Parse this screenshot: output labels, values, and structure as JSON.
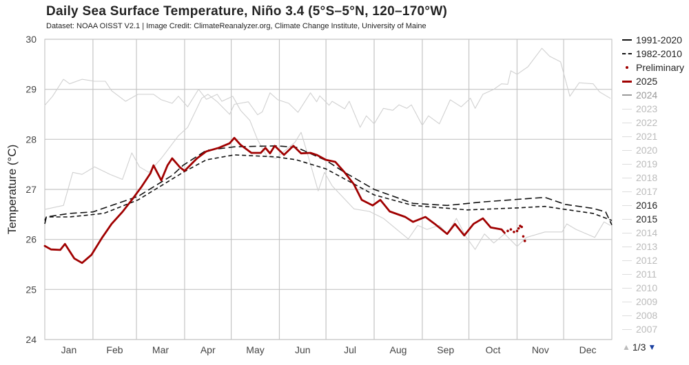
{
  "title": "Daily Sea Surface Temperature, Niño 3.4 (5°S–5°N, 120–170°W)",
  "subtitle": "Dataset: NOAA OISST V2.1 | Image Credit: ClimateReanalyzer.org, Climate Change Institute, University of Maine",
  "legend": [
    {
      "label": "1991-2020",
      "style": "solid",
      "color": "#111111",
      "text_color": "#222222"
    },
    {
      "label": "1982-2010",
      "style": "dash-dot",
      "color": "#111111",
      "text_color": "#222222"
    },
    {
      "label": "Preliminary",
      "style": "dot",
      "color": "#a00000",
      "text_color": "#222222"
    },
    {
      "label": "2025",
      "style": "solid-thick",
      "color": "#a00000",
      "text_color": "#222222"
    },
    {
      "label": "2024",
      "style": "solid",
      "color": "#999999",
      "text_color": "#999999"
    },
    {
      "label": "2023",
      "style": "solid",
      "color": "#dddddd",
      "text_color": "#bbbbbb"
    },
    {
      "label": "2022",
      "style": "solid",
      "color": "#dddddd",
      "text_color": "#bbbbbb"
    },
    {
      "label": "2021",
      "style": "solid",
      "color": "#dddddd",
      "text_color": "#bbbbbb"
    },
    {
      "label": "2020",
      "style": "solid",
      "color": "#dddddd",
      "text_color": "#bbbbbb"
    },
    {
      "label": "2019",
      "style": "solid",
      "color": "#dddddd",
      "text_color": "#bbbbbb"
    },
    {
      "label": "2018",
      "style": "solid",
      "color": "#dddddd",
      "text_color": "#bbbbbb"
    },
    {
      "label": "2017",
      "style": "solid",
      "color": "#dddddd",
      "text_color": "#bbbbbb"
    },
    {
      "label": "2016",
      "style": "solid",
      "color": "#dddddd",
      "text_color": "#222222"
    },
    {
      "label": "2015",
      "style": "solid",
      "color": "#dddddd",
      "text_color": "#222222"
    },
    {
      "label": "2014",
      "style": "solid",
      "color": "#dddddd",
      "text_color": "#bbbbbb"
    },
    {
      "label": "2013",
      "style": "solid",
      "color": "#dddddd",
      "text_color": "#bbbbbb"
    },
    {
      "label": "2012",
      "style": "solid",
      "color": "#dddddd",
      "text_color": "#bbbbbb"
    },
    {
      "label": "2011",
      "style": "solid",
      "color": "#dddddd",
      "text_color": "#bbbbbb"
    },
    {
      "label": "2010",
      "style": "solid",
      "color": "#dddddd",
      "text_color": "#bbbbbb"
    },
    {
      "label": "2009",
      "style": "solid",
      "color": "#dddddd",
      "text_color": "#bbbbbb"
    },
    {
      "label": "2008",
      "style": "solid",
      "color": "#dddddd",
      "text_color": "#bbbbbb"
    },
    {
      "label": "2007",
      "style": "solid",
      "color": "#dddddd",
      "text_color": "#bbbbbb"
    }
  ],
  "pager": {
    "label": "1/3",
    "up_icon": "triangle-up",
    "down_icon": "triangle-down"
  },
  "chart_data": {
    "type": "line",
    "title": "Daily Sea Surface Temperature, Niño 3.4 (5°S–5°N, 120–170°W)",
    "ylabel": "Temperature (°C)",
    "xlabel": "",
    "x_unit": "day of year",
    "xlim": [
      0,
      365
    ],
    "ylim": [
      24,
      30
    ],
    "yticks": [
      "24",
      "25",
      "26",
      "27",
      "28",
      "29",
      "30"
    ],
    "xticks": [
      "Jan",
      "Feb",
      "Mar",
      "Apr",
      "May",
      "Jun",
      "Jul",
      "Aug",
      "Sep",
      "Oct",
      "Nov",
      "Dec"
    ],
    "grid": true,
    "legend_position": "right",
    "series": [
      {
        "name": "2016",
        "color": "#d0d0d0",
        "style": "thin",
        "points": [
          [
            0,
            28.68
          ],
          [
            5,
            28.86
          ],
          [
            12,
            29.2
          ],
          [
            16,
            29.11
          ],
          [
            24,
            29.2
          ],
          [
            32,
            29.16
          ],
          [
            39,
            29.16
          ],
          [
            43,
            28.97
          ],
          [
            52,
            28.76
          ],
          [
            60,
            28.9
          ],
          [
            70,
            28.9
          ],
          [
            75,
            28.79
          ],
          [
            82,
            28.72
          ],
          [
            86,
            28.86
          ],
          [
            92,
            28.65
          ],
          [
            99,
            29.0
          ],
          [
            104,
            28.8
          ],
          [
            111,
            28.9
          ],
          [
            114,
            28.76
          ],
          [
            121,
            28.86
          ],
          [
            126,
            28.58
          ],
          [
            132,
            28.38
          ],
          [
            137,
            27.99
          ],
          [
            143,
            27.66
          ],
          [
            149,
            27.62
          ],
          [
            154,
            27.76
          ],
          [
            161,
            27.94
          ],
          [
            165,
            28.14
          ],
          [
            169,
            27.72
          ],
          [
            176,
            26.97
          ],
          [
            180,
            27.34
          ],
          [
            185,
            27.07
          ],
          [
            192,
            26.84
          ],
          [
            199,
            26.61
          ],
          [
            209,
            26.56
          ],
          [
            218,
            26.42
          ],
          [
            225,
            26.24
          ],
          [
            234,
            26.01
          ],
          [
            240,
            26.28
          ],
          [
            246,
            26.2
          ],
          [
            254,
            26.28
          ],
          [
            259,
            26.11
          ],
          [
            265,
            26.42
          ],
          [
            271,
            26.06
          ],
          [
            277,
            25.8
          ],
          [
            283,
            26.11
          ],
          [
            289,
            25.93
          ],
          [
            296,
            26.11
          ],
          [
            304,
            25.86
          ],
          [
            310,
            26.04
          ],
          [
            322,
            26.15
          ],
          [
            333,
            26.15
          ],
          [
            336,
            26.31
          ],
          [
            342,
            26.2
          ],
          [
            354,
            26.04
          ],
          [
            360,
            26.35
          ],
          [
            364,
            26.28
          ]
        ]
      },
      {
        "name": "2015",
        "color": "#d0d0d0",
        "style": "thin",
        "points": [
          [
            0,
            26.6
          ],
          [
            12,
            26.68
          ],
          [
            18,
            27.34
          ],
          [
            24,
            27.3
          ],
          [
            32,
            27.45
          ],
          [
            42,
            27.3
          ],
          [
            50,
            27.2
          ],
          [
            56,
            27.73
          ],
          [
            61,
            27.45
          ],
          [
            67,
            27.34
          ],
          [
            75,
            27.62
          ],
          [
            86,
            28.07
          ],
          [
            92,
            28.24
          ],
          [
            101,
            28.82
          ],
          [
            105,
            28.9
          ],
          [
            111,
            28.75
          ],
          [
            119,
            28.5
          ],
          [
            122,
            28.7
          ],
          [
            131,
            28.75
          ],
          [
            137,
            28.49
          ],
          [
            140,
            28.55
          ],
          [
            145,
            28.93
          ],
          [
            150,
            28.79
          ],
          [
            157,
            28.72
          ],
          [
            163,
            28.54
          ],
          [
            171,
            28.93
          ],
          [
            175,
            28.75
          ],
          [
            177,
            28.87
          ],
          [
            183,
            28.68
          ],
          [
            185,
            28.76
          ],
          [
            193,
            28.61
          ],
          [
            196,
            28.76
          ],
          [
            203,
            28.24
          ],
          [
            207,
            28.47
          ],
          [
            212,
            28.31
          ],
          [
            218,
            28.62
          ],
          [
            224,
            28.58
          ],
          [
            228,
            28.69
          ],
          [
            233,
            28.62
          ],
          [
            236,
            28.69
          ],
          [
            243,
            28.28
          ],
          [
            247,
            28.47
          ],
          [
            254,
            28.31
          ],
          [
            261,
            28.79
          ],
          [
            268,
            28.65
          ],
          [
            274,
            28.82
          ],
          [
            277,
            28.62
          ],
          [
            282,
            28.9
          ],
          [
            289,
            29.0
          ],
          [
            294,
            29.11
          ],
          [
            298,
            29.1
          ],
          [
            300,
            29.37
          ],
          [
            304,
            29.3
          ],
          [
            311,
            29.45
          ],
          [
            320,
            29.82
          ],
          [
            325,
            29.66
          ],
          [
            332,
            29.55
          ],
          [
            338,
            28.86
          ],
          [
            344,
            29.13
          ],
          [
            353,
            29.11
          ],
          [
            357,
            28.95
          ],
          [
            364,
            28.82
          ]
        ]
      },
      {
        "name": "1982-2010",
        "color": "#111111",
        "style": "short-dash",
        "points": [
          [
            0,
            26.38
          ],
          [
            1,
            26.45
          ],
          [
            16,
            26.45
          ],
          [
            38,
            26.52
          ],
          [
            60,
            26.79
          ],
          [
            89,
            27.34
          ],
          [
            104,
            27.59
          ],
          [
            122,
            27.69
          ],
          [
            149,
            27.65
          ],
          [
            162,
            27.59
          ],
          [
            181,
            27.41
          ],
          [
            212,
            26.89
          ],
          [
            237,
            26.68
          ],
          [
            272,
            26.59
          ],
          [
            304,
            26.63
          ],
          [
            322,
            26.66
          ],
          [
            335,
            26.6
          ],
          [
            353,
            26.52
          ],
          [
            365,
            26.38
          ]
        ]
      },
      {
        "name": "1991-2020",
        "color": "#111111",
        "style": "long-dash",
        "points": [
          [
            0,
            26.31
          ],
          [
            1,
            26.45
          ],
          [
            16,
            26.52
          ],
          [
            31,
            26.55
          ],
          [
            60,
            26.86
          ],
          [
            82,
            27.28
          ],
          [
            89,
            27.48
          ],
          [
            104,
            27.78
          ],
          [
            122,
            27.85
          ],
          [
            149,
            27.87
          ],
          [
            162,
            27.84
          ],
          [
            181,
            27.58
          ],
          [
            193,
            27.34
          ],
          [
            212,
            27.0
          ],
          [
            237,
            26.72
          ],
          [
            259,
            26.68
          ],
          [
            282,
            26.75
          ],
          [
            304,
            26.8
          ],
          [
            322,
            26.84
          ],
          [
            335,
            26.7
          ],
          [
            353,
            26.62
          ],
          [
            361,
            26.55
          ],
          [
            365,
            26.29
          ]
        ]
      },
      {
        "name": "2025",
        "color": "#a00000",
        "style": "thick",
        "points": [
          [
            0,
            25.87
          ],
          [
            4,
            25.8
          ],
          [
            10,
            25.79
          ],
          [
            13,
            25.91
          ],
          [
            19,
            25.62
          ],
          [
            24,
            25.53
          ],
          [
            30,
            25.69
          ],
          [
            37,
            26.04
          ],
          [
            43,
            26.31
          ],
          [
            50,
            26.55
          ],
          [
            56,
            26.79
          ],
          [
            62,
            27.04
          ],
          [
            68,
            27.32
          ],
          [
            70,
            27.48
          ],
          [
            75,
            27.18
          ],
          [
            79,
            27.48
          ],
          [
            82,
            27.62
          ],
          [
            87,
            27.44
          ],
          [
            90,
            27.37
          ],
          [
            98,
            27.62
          ],
          [
            104,
            27.76
          ],
          [
            112,
            27.83
          ],
          [
            119,
            27.92
          ],
          [
            122,
            28.03
          ],
          [
            126,
            27.89
          ],
          [
            133,
            27.73
          ],
          [
            139,
            27.73
          ],
          [
            142,
            27.83
          ],
          [
            145,
            27.72
          ],
          [
            148,
            27.87
          ],
          [
            154,
            27.69
          ],
          [
            160,
            27.87
          ],
          [
            165,
            27.72
          ],
          [
            171,
            27.73
          ],
          [
            175,
            27.69
          ],
          [
            181,
            27.59
          ],
          [
            187,
            27.55
          ],
          [
            193,
            27.34
          ],
          [
            199,
            27.1
          ],
          [
            204,
            26.79
          ],
          [
            211,
            26.68
          ],
          [
            216,
            26.79
          ],
          [
            222,
            26.56
          ],
          [
            232,
            26.45
          ],
          [
            237,
            26.35
          ],
          [
            245,
            26.45
          ],
          [
            251,
            26.31
          ],
          [
            259,
            26.11
          ],
          [
            264,
            26.31
          ],
          [
            270,
            26.08
          ],
          [
            276,
            26.31
          ],
          [
            282,
            26.42
          ],
          [
            287,
            26.24
          ],
          [
            294,
            26.2
          ],
          [
            296,
            26.13
          ]
        ]
      },
      {
        "name": "Preliminary",
        "color": "#a00000",
        "style": "dots",
        "points": [
          [
            298,
            26.17
          ],
          [
            300,
            26.2
          ],
          [
            302,
            26.15
          ],
          [
            304,
            26.17
          ],
          [
            305,
            26.22
          ],
          [
            306,
            26.27
          ],
          [
            307,
            26.25
          ],
          [
            308,
            26.06
          ],
          [
            309,
            25.97
          ]
        ]
      }
    ]
  }
}
